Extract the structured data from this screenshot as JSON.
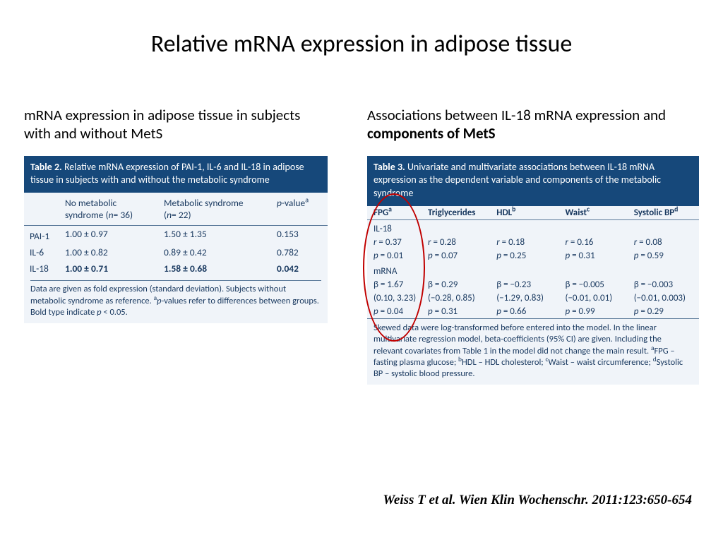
{
  "title": "Relative mRNA expression in adipose tissue",
  "left": {
    "subtitle": "mRNA expression in adipose tissue in subjects with and without MetS",
    "tableTitle_prefix": "Table 2. ",
    "tableTitle_body": "Relative mRNA expression of PAI-1, IL-6 and IL-18 in adipose tissue in subjects with and without the metabolic syndrome",
    "cols": {
      "c1": "",
      "c2_line1": "No metabolic",
      "c2_line2_a": "syndrome (",
      "c2_n": "n",
      "c2_line2_b": "= 36)",
      "c3_line1": "Metabolic syndrome",
      "c3_line2_a": "(",
      "c3_n": "n",
      "c3_line2_b": "= 22)",
      "c4_a": "p",
      "c4_b": "-value",
      "c4_sup": "a"
    },
    "rows": [
      {
        "gene": "PAI-1",
        "a": "1.00 ± 0.97",
        "b": "1.50 ± 1.35",
        "p": "0.153",
        "bold": false
      },
      {
        "gene": "IL-6",
        "a": "1.00 ± 0.82",
        "b": "0.89 ± 0.42",
        "p": "0.782",
        "bold": false
      },
      {
        "gene": "IL-18",
        "a": "1.00 ± 0.71",
        "b": "1.58 ± 0.68",
        "p": "0.042",
        "bold": true
      }
    ],
    "footnote_a": "Data are given as fold expression (standard deviation). Subjects without metabolic syndrome as reference. ",
    "footnote_sup": "a",
    "footnote_b_i": "p",
    "footnote_b": "-values refer to differences between groups. Bold type indicate ",
    "footnote_c_i": "p",
    "footnote_c": " < 0.05."
  },
  "right": {
    "subtitle_a": "Associations between IL-18 mRNA expression and ",
    "subtitle_b": "components of MetS",
    "tableTitle_prefix": "Table 3. ",
    "tableTitle_body": "Univariate and multivariate associations between IL-18 mRNA expression as the dependent variable and components of the metabolic syndrome",
    "cols": {
      "c1": "FPG",
      "c1_sup": "a",
      "c2": "Triglycerides",
      "c3": "HDL",
      "c3_sup": "b",
      "c4": "Waist",
      "c4_sup": "c",
      "c5": "Systolic BP",
      "c5_sup": "d"
    },
    "sec1_label": "IL-18",
    "sec1": {
      "r1": [
        "r = 0.37",
        "r = 0.28",
        "r = 0.18",
        "r = 0.16",
        "r = 0.08"
      ],
      "r2": [
        "p = 0.01",
        "p = 0.07",
        "p = 0.25",
        "p = 0.31",
        "p = 0.59"
      ]
    },
    "sec2_label": "mRNA",
    "sec2": {
      "r1": [
        "β = 1.67",
        "β = 0.29",
        "β = −0.23",
        "β = −0.005",
        "β = −0.003"
      ],
      "r2": [
        "(0.10, 3.23)",
        "(−0.28, 0.85)",
        "(−1.29, 0.83)",
        "(−0.01, 0.01)",
        "(−0.01, 0.003)"
      ],
      "r3": [
        "p = 0.04",
        "p = 0.31",
        "p = 0.66",
        "p = 0.99",
        "p = 0.29"
      ]
    },
    "footnote": "Skewed data were log-transformed before entered into the model. In the linear multivariate regression model, beta-coefficients (95% CI) are given. Including the relevant covariates from Table 1 in the model did not change the main result. ",
    "fn_a_sup": "a",
    "fn_a": "FPG – fasting plasma glucose; ",
    "fn_b_sup": "b",
    "fn_b": "HDL – HDL cholesterol; ",
    "fn_c_sup": "c",
    "fn_c": "Waist – waist circumference; ",
    "fn_d_sup": "d",
    "fn_d": "Systolic BP – systolic blood pressure."
  },
  "citation": "Weiss T et al. Wien Klin Wochenschr. 2011:123:650-654",
  "style": {
    "header_bg": "#16487a",
    "body_bg": "#f0f4f9",
    "text_color": "#17375e",
    "ellipse_color": "#c00000"
  }
}
